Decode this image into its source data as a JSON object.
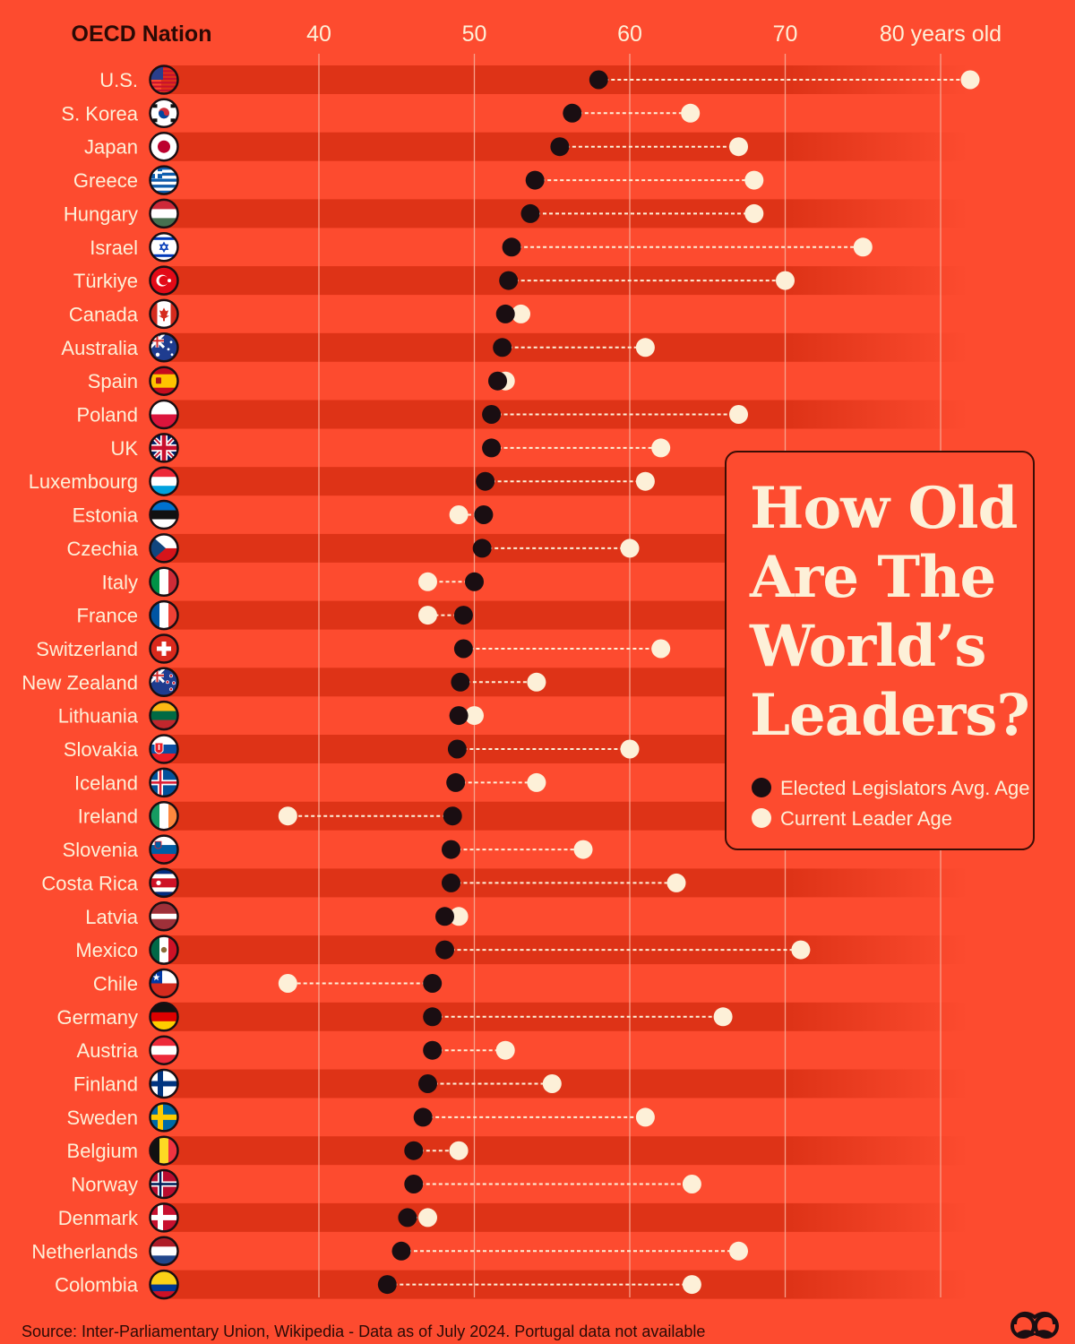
{
  "colors": {
    "background": "#fd4b2f",
    "band": "#de3317",
    "legislator_dot": "#1a0e12",
    "leader_dot": "#fdf0d8",
    "text_dark": "#2b0a05",
    "text_light": "#fdf0d8"
  },
  "title": "How Old Are The World’s Leaders?",
  "legend": {
    "legislators": "Elected Legislators Avg. Age",
    "leader": "Current Leader Age"
  },
  "source": "Source: Inter-Parliamentary Union, Wikipedia - Data as of July 2024. Portugal data not available",
  "logo_icon": "mustache-binoculars-icon",
  "chart_data": {
    "type": "dumbbell",
    "category_header": "OECD Nation",
    "x_ticks": [
      {
        "value": 40,
        "label": "40"
      },
      {
        "value": 50,
        "label": "50"
      },
      {
        "value": 60,
        "label": "60"
      },
      {
        "value": 70,
        "label": "70"
      },
      {
        "value": 80,
        "label": "80 years old"
      }
    ],
    "xlim": [
      40,
      80
    ],
    "grid": true,
    "legend_position": "right",
    "series": [
      {
        "name": "Elected Legislators Avg. Age",
        "key": "legislators"
      },
      {
        "name": "Current Leader Age",
        "key": "leader"
      }
    ],
    "rows": [
      {
        "country": "U.S.",
        "flag": "us-flag",
        "legislators": 58.0,
        "leader": 81.9
      },
      {
        "country": "S. Korea",
        "flag": "south-korea-flag",
        "legislators": 56.3,
        "leader": 63.9
      },
      {
        "country": "Japan",
        "flag": "japan-flag",
        "legislators": 55.5,
        "leader": 67.0
      },
      {
        "country": "Greece",
        "flag": "greece-flag",
        "legislators": 53.9,
        "leader": 68.0
      },
      {
        "country": "Hungary",
        "flag": "hungary-flag",
        "legislators": 53.6,
        "leader": 68.0
      },
      {
        "country": "Israel",
        "flag": "israel-flag",
        "legislators": 52.4,
        "leader": 75.0
      },
      {
        "country": "Türkiye",
        "flag": "turkiye-flag",
        "legislators": 52.2,
        "leader": 70.0
      },
      {
        "country": "Canada",
        "flag": "canada-flag",
        "legislators": 52.0,
        "leader": 53.0
      },
      {
        "country": "Australia",
        "flag": "australia-flag",
        "legislators": 51.8,
        "leader": 61.0
      },
      {
        "country": "Spain",
        "flag": "spain-flag",
        "legislators": 51.5,
        "leader": 52.0
      },
      {
        "country": "Poland",
        "flag": "poland-flag",
        "legislators": 51.1,
        "leader": 67.0
      },
      {
        "country": "UK",
        "flag": "uk-flag",
        "legislators": 51.1,
        "leader": 62.0
      },
      {
        "country": "Luxembourg",
        "flag": "luxembourg-flag",
        "legislators": 50.7,
        "leader": 61.0
      },
      {
        "country": "Estonia",
        "flag": "estonia-flag",
        "legislators": 50.6,
        "leader": 49.0
      },
      {
        "country": "Czechia",
        "flag": "czechia-flag",
        "legislators": 50.5,
        "leader": 60.0
      },
      {
        "country": "Italy",
        "flag": "italy-flag",
        "legislators": 50.0,
        "leader": 47.0
      },
      {
        "country": "France",
        "flag": "france-flag",
        "legislators": 49.3,
        "leader": 47.0
      },
      {
        "country": "Switzerland",
        "flag": "switzerland-flag",
        "legislators": 49.3,
        "leader": 62.0
      },
      {
        "country": "New Zealand",
        "flag": "new-zealand-flag",
        "legislators": 49.1,
        "leader": 54.0
      },
      {
        "country": "Lithuania",
        "flag": "lithuania-flag",
        "legislators": 49.0,
        "leader": 50.0
      },
      {
        "country": "Slovakia",
        "flag": "slovakia-flag",
        "legislators": 48.9,
        "leader": 60.0
      },
      {
        "country": "Iceland",
        "flag": "iceland-flag",
        "legislators": 48.8,
        "leader": 54.0
      },
      {
        "country": "Ireland",
        "flag": "ireland-flag",
        "legislators": 48.6,
        "leader": 38.0
      },
      {
        "country": "Slovenia",
        "flag": "slovenia-flag",
        "legislators": 48.5,
        "leader": 57.0
      },
      {
        "country": "Costa Rica",
        "flag": "costa-rica-flag",
        "legislators": 48.5,
        "leader": 63.0
      },
      {
        "country": "Latvia",
        "flag": "latvia-flag",
        "legislators": 48.1,
        "leader": 49.0
      },
      {
        "country": "Mexico",
        "flag": "mexico-flag",
        "legislators": 48.1,
        "leader": 71.0
      },
      {
        "country": "Chile",
        "flag": "chile-flag",
        "legislators": 47.3,
        "leader": 38.0
      },
      {
        "country": "Germany",
        "flag": "germany-flag",
        "legislators": 47.3,
        "leader": 66.0
      },
      {
        "country": "Austria",
        "flag": "austria-flag",
        "legislators": 47.3,
        "leader": 52.0
      },
      {
        "country": "Finland",
        "flag": "finland-flag",
        "legislators": 47.0,
        "leader": 55.0
      },
      {
        "country": "Sweden",
        "flag": "sweden-flag",
        "legislators": 46.7,
        "leader": 61.0
      },
      {
        "country": "Belgium",
        "flag": "belgium-flag",
        "legislators": 46.1,
        "leader": 49.0
      },
      {
        "country": "Norway",
        "flag": "norway-flag",
        "legislators": 46.1,
        "leader": 64.0
      },
      {
        "country": "Denmark",
        "flag": "denmark-flag",
        "legislators": 45.7,
        "leader": 47.0
      },
      {
        "country": "Netherlands",
        "flag": "netherlands-flag",
        "legislators": 45.3,
        "leader": 67.0
      },
      {
        "country": "Colombia",
        "flag": "colombia-flag",
        "legislators": 44.4,
        "leader": 64.0
      }
    ]
  }
}
